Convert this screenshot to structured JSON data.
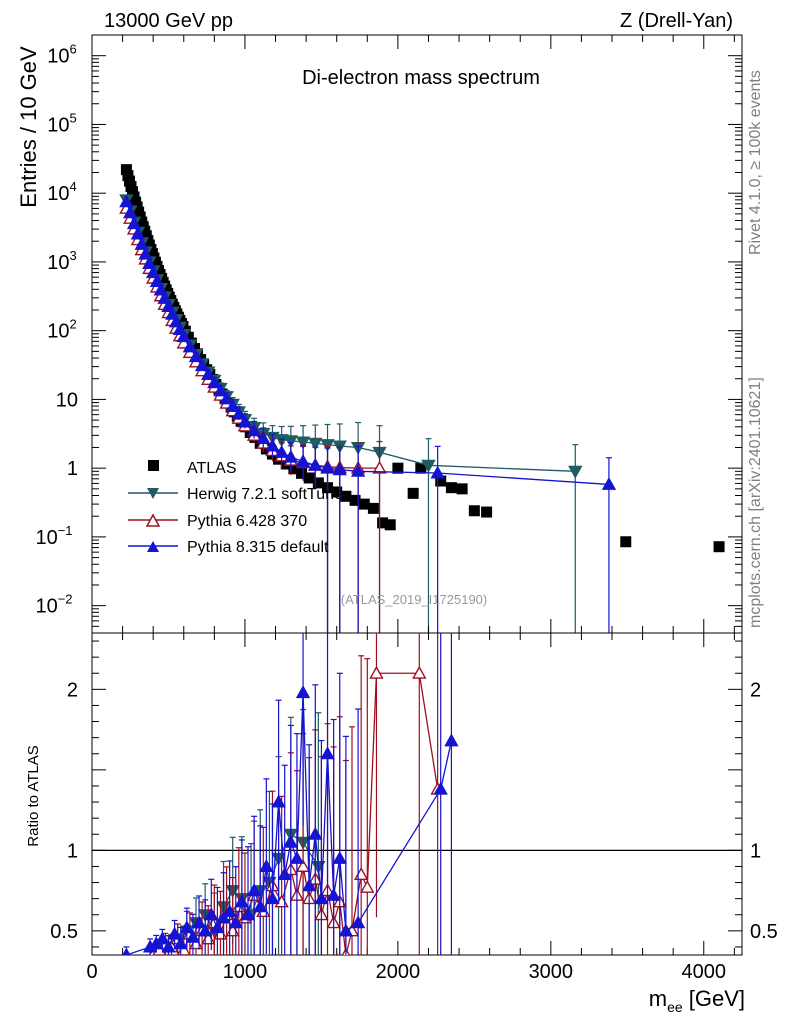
{
  "header": {
    "energy": "13000 GeV pp",
    "process": "Z (Drell-Yan)",
    "rivet_info": "Rivet 4.1.0, ≥ 100k events",
    "website": "mcplots.cern.ch [arXiv:2401.10621]",
    "analysis_id": "(ATLAS_2019_I1725190)"
  },
  "colors": {
    "atlas": "#000000",
    "herwig": "#1f5c63",
    "pythia6": "#9e1020",
    "pythia8": "#1414d2"
  },
  "chart_data": [
    {
      "type": "scatter",
      "title": "Di-electron mass spectrum",
      "xlabel": "m_ee [GeV]",
      "ylabel": "Entries / 10 GeV",
      "yscale": "log",
      "xlim": [
        0,
        4250
      ],
      "ylim": [
        0.004,
        2000000
      ],
      "legend_position": "left-middle",
      "legend": [
        "ATLAS",
        "Herwig 7.2.1 softTune",
        "Pythia 6.428 370",
        "Pythia 8.315 default"
      ],
      "series": [
        {
          "name": "ATLAS",
          "x": [
            225,
            235,
            245,
            255,
            265,
            275,
            285,
            295,
            305,
            315,
            325,
            335,
            345,
            355,
            365,
            375,
            385,
            395,
            405,
            415,
            425,
            435,
            445,
            455,
            465,
            475,
            485,
            495,
            505,
            515,
            525,
            535,
            545,
            555,
            565,
            575,
            585,
            595,
            610,
            630,
            650,
            670,
            690,
            710,
            730,
            750,
            770,
            790,
            810,
            830,
            850,
            870,
            890,
            910,
            930,
            950,
            975,
            1005,
            1035,
            1065,
            1100,
            1140,
            1180,
            1220,
            1270,
            1320,
            1370,
            1420,
            1480,
            1540,
            1600,
            1660,
            1720,
            1780,
            1840,
            1900,
            1950,
            2000,
            2100,
            2150,
            2280,
            2350,
            2420,
            2500,
            2580,
            3490,
            4100
          ],
          "y": [
            22000,
            18000,
            15000,
            12500,
            10500,
            8800,
            7400,
            6300,
            5300,
            4500,
            3800,
            3250,
            2800,
            2400,
            2050,
            1760,
            1520,
            1320,
            1140,
            990,
            860,
            750,
            655,
            575,
            505,
            445,
            392,
            348,
            308,
            274,
            244,
            218,
            195,
            175,
            157,
            141,
            127,
            115,
            98,
            80,
            66,
            55,
            46,
            38,
            32,
            27,
            23,
            19.5,
            16.5,
            14,
            12,
            10.3,
            8.9,
            7.7,
            6.6,
            5.7,
            4.8,
            4.0,
            3.3,
            2.8,
            2.3,
            1.9,
            1.6,
            1.35,
            1.15,
            0.98,
            0.84,
            0.72,
            0.61,
            0.52,
            0.45,
            0.39,
            0.34,
            0.3,
            0.26,
            0.16,
            0.15,
            1.0,
            0.43,
            1.0,
            0.65,
            0.52,
            0.5,
            0.24,
            0.23,
            0.085,
            0.072
          ]
        },
        {
          "name": "Herwig 7.2.1 softTune",
          "x": [
            225,
            250,
            275,
            300,
            325,
            350,
            375,
            400,
            425,
            450,
            475,
            500,
            525,
            550,
            575,
            600,
            640,
            680,
            720,
            760,
            800,
            840,
            880,
            920,
            960,
            1000,
            1060,
            1120,
            1180,
            1240,
            1300,
            1380,
            1460,
            1540,
            1620,
            1740,
            1880,
            2200,
            3160
          ],
          "y": [
            8000,
            5500,
            3800,
            2700,
            1900,
            1400,
            1000,
            740,
            550,
            410,
            310,
            240,
            185,
            145,
            112,
            88,
            62,
            45,
            33,
            25,
            19,
            14.5,
            11,
            8.5,
            6.6,
            5.1,
            3.9,
            3.2,
            2.8,
            2.6,
            2.5,
            2.4,
            2.3,
            2.2,
            2.1,
            2.0,
            1.7,
            1.1,
            0.9
          ]
        },
        {
          "name": "Pythia 6.428 370",
          "x": [
            225,
            250,
            275,
            300,
            325,
            350,
            375,
            400,
            425,
            450,
            475,
            500,
            525,
            550,
            575,
            600,
            640,
            680,
            720,
            760,
            800,
            840,
            880,
            920,
            960,
            1000,
            1060,
            1120,
            1180,
            1240,
            1300,
            1380,
            1460,
            1540,
            1620,
            1740,
            1880
          ],
          "y": [
            6000,
            4300,
            3000,
            2100,
            1500,
            1100,
            800,
            580,
            430,
            320,
            240,
            182,
            140,
            108,
            84,
            66,
            48,
            35,
            26,
            19.5,
            15,
            11.5,
            8.8,
            6.8,
            5.3,
            4.1,
            3.0,
            2.3,
            1.8,
            1.5,
            1.3,
            1.2,
            1.1,
            1.05,
            1.02,
            1.0,
            1.0
          ]
        },
        {
          "name": "Pythia 8.315 default",
          "x": [
            225,
            250,
            275,
            300,
            325,
            350,
            375,
            400,
            425,
            450,
            475,
            500,
            525,
            550,
            575,
            600,
            640,
            680,
            720,
            760,
            800,
            840,
            880,
            920,
            960,
            1000,
            1060,
            1120,
            1180,
            1240,
            1300,
            1380,
            1460,
            1540,
            1620,
            1740,
            2260,
            3380
          ],
          "y": [
            7500,
            5200,
            3600,
            2550,
            1800,
            1300,
            950,
            700,
            520,
            390,
            295,
            225,
            173,
            134,
            104,
            82,
            58,
            42,
            31,
            23,
            17.5,
            13.3,
            10.2,
            7.9,
            6.1,
            4.7,
            3.5,
            2.7,
            2.1,
            1.7,
            1.45,
            1.25,
            1.1,
            1.0,
            0.95,
            0.9,
            0.85,
            0.58
          ]
        }
      ]
    },
    {
      "type": "line",
      "title": "",
      "xlabel": "m_ee [GeV]",
      "ylabel": "Ratio to ATLAS",
      "xlim": [
        0,
        4250
      ],
      "ylim": [
        0.35,
        2.35
      ],
      "reference_line": 1,
      "series": [
        {
          "name": "Herwig 7.2.1 softTune",
          "x": [
            500,
            560,
            620,
            680,
            740,
            800,
            860,
            920,
            980,
            1040,
            1100,
            1160,
            1220,
            1300,
            1380,
            1480
          ],
          "y": [
            0.4,
            0.45,
            0.5,
            0.55,
            0.6,
            0.5,
            0.65,
            0.75,
            0.7,
            0.6,
            0.75,
            0.8,
            0.95,
            1.1,
            1.05,
            0.9
          ]
        },
        {
          "name": "Pythia 6.428 370",
          "x": [
            400,
            440,
            480,
            520,
            560,
            600,
            640,
            680,
            720,
            760,
            800,
            840,
            880,
            920,
            960,
            1000,
            1060,
            1120,
            1180,
            1240,
            1300,
            1340,
            1380,
            1420,
            1460,
            1500,
            1540,
            1580,
            1620,
            1660,
            1700,
            1760,
            1800,
            1860,
            2140,
            2260
          ],
          "y": [
            0.35,
            0.38,
            0.42,
            0.4,
            0.45,
            0.38,
            0.48,
            0.42,
            0.5,
            0.45,
            0.55,
            0.48,
            0.6,
            0.5,
            0.65,
            0.58,
            0.72,
            0.62,
            0.78,
            0.68,
            0.88,
            0.72,
            0.9,
            0.7,
            0.82,
            0.6,
            0.75,
            0.55,
            0.68,
            0.35,
            0.5,
            0.85,
            0.77,
            2.1,
            2.1,
            1.38
          ]
        },
        {
          "name": "Pythia 8.315 default",
          "x": [
            225,
            380,
            420,
            460,
            500,
            540,
            580,
            620,
            660,
            700,
            740,
            780,
            820,
            860,
            900,
            940,
            980,
            1020,
            1060,
            1100,
            1140,
            1180,
            1220,
            1260,
            1300,
            1340,
            1380,
            1420,
            1460,
            1500,
            1540,
            1580,
            1620,
            1660,
            1740,
            2280,
            2350
          ],
          "y": [
            0.35,
            0.4,
            0.42,
            0.45,
            0.4,
            0.48,
            0.42,
            0.52,
            0.46,
            0.55,
            0.5,
            0.6,
            0.52,
            0.58,
            0.62,
            0.55,
            0.68,
            0.6,
            0.75,
            0.65,
            0.9,
            0.7,
            1.3,
            0.85,
            1.05,
            0.95,
            1.98,
            0.78,
            1.1,
            0.7,
            1.6,
            0.72,
            0.95,
            0.5,
            0.55,
            1.38,
            1.68
          ]
        }
      ]
    }
  ],
  "axes": {
    "main_y_ticks": [
      {
        "value": 1000000,
        "label": "10",
        "exp": "6"
      },
      {
        "value": 100000,
        "label": "10",
        "exp": "5"
      },
      {
        "value": 10000,
        "label": "10",
        "exp": "4"
      },
      {
        "value": 1000,
        "label": "10",
        "exp": "3"
      },
      {
        "value": 100,
        "label": "10",
        "exp": "2"
      },
      {
        "value": 10,
        "label": "10",
        "exp": ""
      },
      {
        "value": 1,
        "label": "1",
        "exp": ""
      },
      {
        "value": 0.1,
        "label": "10",
        "exp": "−1"
      },
      {
        "value": 0.01,
        "label": "10",
        "exp": "−2"
      }
    ],
    "ratio_y_ticks": [
      {
        "value": 2,
        "label": "2"
      },
      {
        "value": 1,
        "label": "1"
      },
      {
        "value": 0.5,
        "label": "0.5"
      }
    ],
    "x_ticks": [
      {
        "value": 0,
        "label": "0"
      },
      {
        "value": 1000,
        "label": "1000"
      },
      {
        "value": 2000,
        "label": "2000"
      },
      {
        "value": 3000,
        "label": "3000"
      },
      {
        "value": 4000,
        "label": "4000"
      }
    ]
  }
}
